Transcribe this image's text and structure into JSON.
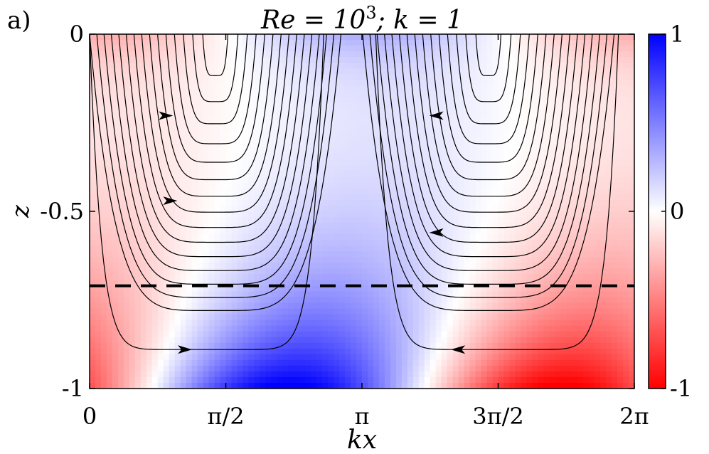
{
  "panel_label": "a)",
  "chart_data": {
    "type": "heatmap",
    "title": "Re = 10³; k = 1",
    "title_parts": {
      "left": "Re = 10",
      "sup": "3",
      "right": "; k = 1"
    },
    "xlabel": "kx",
    "ylabel": "z",
    "xlim": [
      0,
      6.2832
    ],
    "ylim": [
      -1,
      0
    ],
    "x_ticks": [
      {
        "value": 0,
        "label": "0"
      },
      {
        "value": 1.5708,
        "label": "π/2"
      },
      {
        "value": 3.1416,
        "label": "π"
      },
      {
        "value": 4.7124,
        "label": "3π/2"
      },
      {
        "value": 6.2832,
        "label": "2π"
      }
    ],
    "y_ticks": [
      {
        "value": 0,
        "label": "0"
      },
      {
        "value": -0.5,
        "label": "-0.5"
      },
      {
        "value": -1,
        "label": "-1"
      }
    ],
    "colorbar": {
      "range": [
        -1,
        1
      ],
      "ticks": [
        {
          "value": 1,
          "label": "1"
        },
        {
          "value": 0,
          "label": "0"
        },
        {
          "value": -1,
          "label": "-1"
        }
      ],
      "colors": {
        "max": "#0000ff",
        "mid": "#ffffff",
        "min": "#ff0000"
      }
    },
    "dashed_line_z": -0.71,
    "streamline_color": "#000000",
    "arrows": [
      {
        "x": 0.88,
        "z": -0.23,
        "dir": "right"
      },
      {
        "x": 0.93,
        "z": -0.47,
        "dir": "right"
      },
      {
        "x": 1.1,
        "z": -0.89,
        "dir": "right"
      },
      {
        "x": 4.0,
        "z": -0.23,
        "dir": "left"
      },
      {
        "x": 4.0,
        "z": -0.56,
        "dir": "left"
      },
      {
        "x": 4.25,
        "z": -0.89,
        "dir": "left"
      }
    ]
  }
}
